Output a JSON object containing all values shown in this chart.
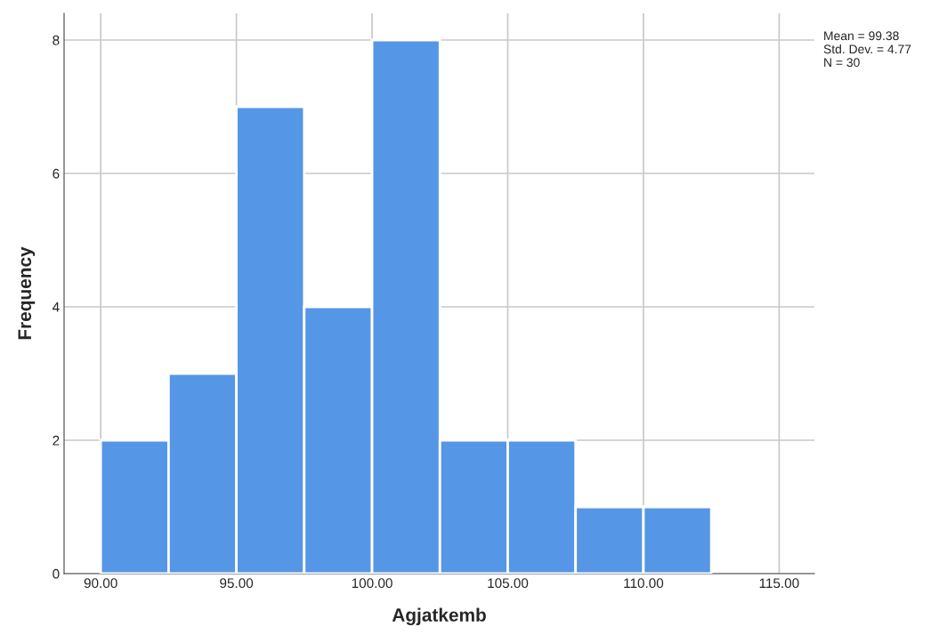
{
  "chart_data": {
    "type": "histogram",
    "xlabel": "Agjatkemb",
    "ylabel": "Frequency",
    "bins": [
      90,
      92.5,
      95,
      97.5,
      100,
      102.5,
      105,
      107.5,
      110,
      112.5
    ],
    "values": [
      2,
      3,
      7,
      4,
      8,
      2,
      2,
      1,
      1
    ],
    "color": "#5596e6",
    "xlim": [
      88.65,
      116.3
    ],
    "ylim": [
      0,
      8.4
    ],
    "xticks": [
      {
        "value": 90,
        "label": "90.00"
      },
      {
        "value": 95,
        "label": "95.00"
      },
      {
        "value": 100,
        "label": "100.00"
      },
      {
        "value": 105,
        "label": "105.00"
      },
      {
        "value": 110,
        "label": "110.00"
      },
      {
        "value": 115,
        "label": "115.00"
      }
    ],
    "yticks": [
      0,
      2,
      4,
      6,
      8
    ],
    "grid": true,
    "annotations": [
      "Mean = 99.38\nStd. Dev. = 4.77\nN = 30"
    ]
  }
}
